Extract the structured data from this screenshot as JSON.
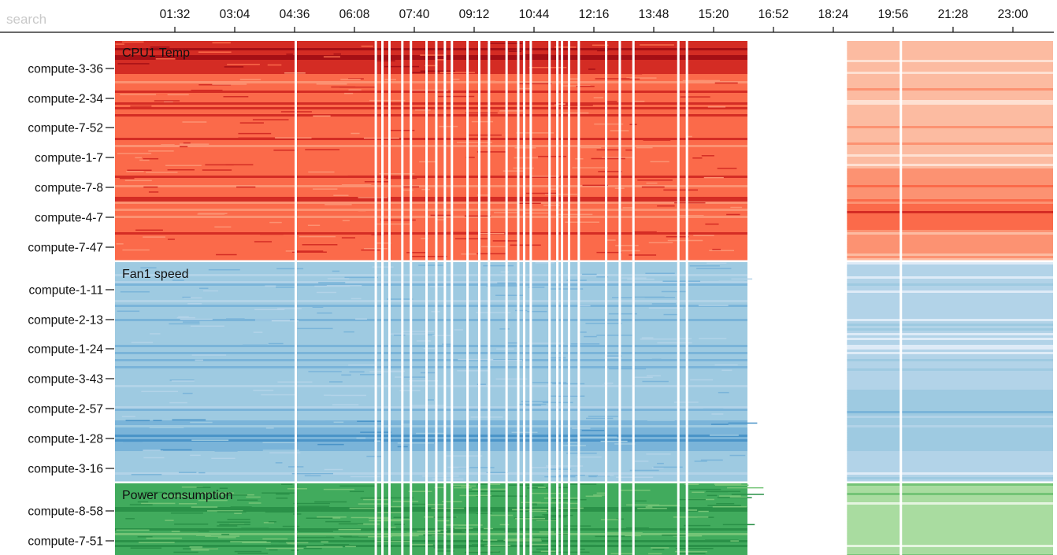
{
  "search": {
    "placeholder": "search"
  },
  "chart_data": {
    "type": "heatmap",
    "x_ticks": [
      "01:32",
      "03:04",
      "04:36",
      "06:08",
      "07:40",
      "09:12",
      "10:44",
      "12:16",
      "13:48",
      "15:20",
      "16:52",
      "18:24",
      "19:56",
      "21:28",
      "23:00"
    ],
    "x_range_hours": [
      0,
      24
    ],
    "data_segments_hours": [
      [
        0.0,
        16.2
      ],
      [
        18.75,
        24.0
      ]
    ],
    "missing_time_gaps_hours": [
      4.6,
      6.65,
      6.82,
      7.0,
      7.33,
      7.55,
      7.95,
      8.2,
      8.42,
      8.6,
      9.0,
      9.3,
      9.55,
      10.0,
      10.3,
      10.45,
      10.62,
      11.1,
      11.3,
      11.42,
      11.6,
      11.85,
      12.55,
      12.9,
      13.25,
      14.4,
      14.62,
      20.1
    ],
    "panels": [
      {
        "title": "CPU1 Temp",
        "color_scale": "reds",
        "rows": [
          "compute-3-36",
          "compute-2-34",
          "compute-7-52",
          "compute-1-7",
          "compute-7-8",
          "compute-4-7",
          "compute-7-47"
        ],
        "row_mean_intensity_levels_0_to_5": [
          4,
          3,
          3,
          3,
          3,
          3,
          3
        ],
        "second_segment_mean_levels_0_to_5": [
          1,
          1,
          1,
          1,
          2,
          3,
          2
        ]
      },
      {
        "title": "Fan1 speed",
        "color_scale": "blues",
        "rows": [
          "compute-1-11",
          "compute-2-13",
          "compute-1-24",
          "compute-3-43",
          "compute-2-57",
          "compute-1-28",
          "compute-3-16"
        ],
        "row_mean_intensity_levels_0_to_5": [
          2,
          2,
          2,
          2,
          2,
          3,
          2
        ],
        "second_segment_mean_levels_0_to_5": [
          1,
          1,
          1,
          1,
          2,
          2,
          1
        ]
      },
      {
        "title": "Power consumption",
        "color_scale": "greens",
        "rows": [
          "compute-8-58",
          "compute-7-51"
        ],
        "row_mean_intensity_levels_0_to_5": [
          3,
          3
        ],
        "second_segment_mean_levels_0_to_5": [
          1,
          1
        ]
      }
    ]
  },
  "colors": {
    "reds": [
      "#fee0d2",
      "#fcbba1",
      "#fc9272",
      "#fb6a4a",
      "#d42c24",
      "#a50f15"
    ],
    "blues": [
      "#deebf7",
      "#b2d3e8",
      "#9ecae1",
      "#7ab4d9",
      "#4a94c8",
      "#2166ac"
    ],
    "greens": [
      "#e5f5e0",
      "#a9dca0",
      "#74c476",
      "#41ab5d",
      "#2a9148",
      "#1b6e35"
    ],
    "axis": "#111111"
  }
}
